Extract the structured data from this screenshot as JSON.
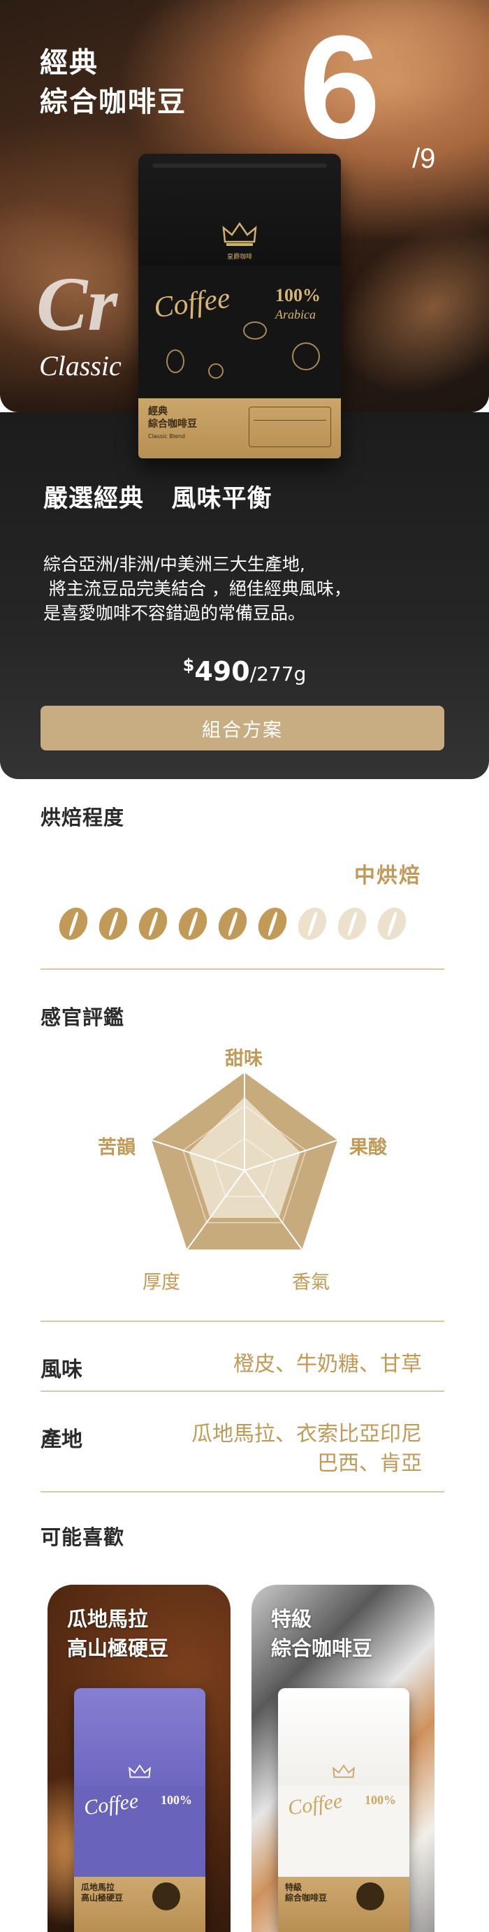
{
  "hero": {
    "title_line1": "經典",
    "title_line2": "綜合咖啡豆",
    "index_current": "6",
    "index_total": "/9",
    "watermark_big": "Cr",
    "watermark_small": "Classic"
  },
  "bag": {
    "brand": "皇爵咖啡",
    "coffee_word": "Coffee",
    "percent": "100%",
    "arabica": "Arabica",
    "label_name_line1": "經典",
    "label_name_line2": "綜合咖啡豆",
    "label_sub": "Classic Blend"
  },
  "info": {
    "headline": "嚴選經典   風味平衡",
    "description_lines": [
      "綜合亞洲/非洲/中美洲三大生產地,",
      " 將主流豆品完美結合 ，絕佳經典風味，",
      "是喜愛咖啡不容錯過的常備豆品。"
    ],
    "price_currency": "$",
    "price_amount": "490",
    "price_unit": "/277g",
    "combo_button": "組合方案"
  },
  "roast": {
    "title": "烘焙程度",
    "level_label": "中烘焙",
    "filled": 6,
    "total": 9,
    "color_filled": "#c29a57",
    "color_empty": "#ece1cd"
  },
  "sensory": {
    "title": "感官評鑑",
    "labels": {
      "sweet": "甜味",
      "acid": "果酸",
      "aroma": "香氣",
      "body": "厚度",
      "finish": "苦韻"
    },
    "scores": {
      "sweet": 0.75,
      "acid": 0.6,
      "aroma": 0.6,
      "body": 0.6,
      "finish": 0.6
    },
    "color_outer": "#c8ab7c",
    "color_inner": "#e9dcc5"
  },
  "flavor": {
    "label": "風味",
    "value": "橙皮、牛奶糖、甘草"
  },
  "origin": {
    "label": "產地",
    "value_line1": "瓜地馬拉、衣索比亞印尼",
    "value_line2": "巴西、肯亞"
  },
  "recommend": {
    "title": "可能喜歡",
    "items": [
      {
        "line1": "瓜地馬拉",
        "line2": "高山極硬豆",
        "bag_color": "#7b74c9"
      },
      {
        "line1": "特級",
        "line2": "綜合咖啡豆",
        "bag_color": "#f4f2ef"
      }
    ]
  },
  "colors": {
    "accent": "#c29a57",
    "button": "#c9ad82",
    "panel": "#1f1f1f"
  }
}
